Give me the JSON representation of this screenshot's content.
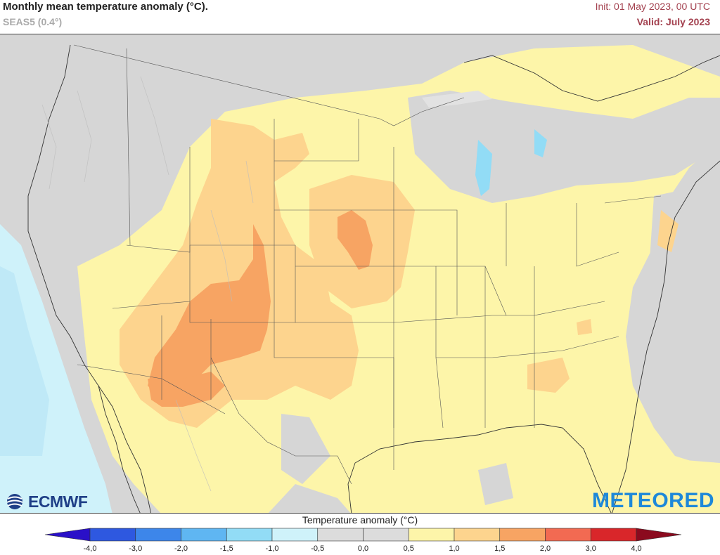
{
  "header": {
    "title": "Monthly mean temperature anomaly (°C).",
    "subtitle": "SEAS5 (0.4°)",
    "init": "Init: 01 May 2023, 00 UTC",
    "valid": "Valid: July 2023"
  },
  "logos": {
    "left": "ECMWF",
    "right": "METEORED"
  },
  "legend": {
    "title": "Temperature anomaly (°C)",
    "tick_labels": [
      "-4,0",
      "-3,0",
      "-2,0",
      "-1,5",
      "-1,0",
      "-0,5",
      "0,0",
      "0,5",
      "1,0",
      "1,5",
      "2,0",
      "3,0",
      "4,0"
    ],
    "under_color": "#2a10c8",
    "over_color": "#8b0a1e",
    "bins": [
      {
        "from": -4.0,
        "to": -3.0,
        "color": "#2e58e0"
      },
      {
        "from": -3.0,
        "to": -2.0,
        "color": "#3d86ea"
      },
      {
        "from": -2.0,
        "to": -1.5,
        "color": "#5fb6f2"
      },
      {
        "from": -1.5,
        "to": -1.0,
        "color": "#92dcf6"
      },
      {
        "from": -1.0,
        "to": -0.5,
        "color": "#cff2fa"
      },
      {
        "from": -0.5,
        "to": 0.0,
        "color": "#dcdcdc"
      },
      {
        "from": 0.0,
        "to": 0.5,
        "color": "#dcdcdc"
      },
      {
        "from": 0.5,
        "to": 1.0,
        "color": "#fdf5a9"
      },
      {
        "from": 1.0,
        "to": 1.5,
        "color": "#fdd48e"
      },
      {
        "from": 1.5,
        "to": 2.0,
        "color": "#f7a463"
      },
      {
        "from": 2.0,
        "to": 3.0,
        "color": "#f26a52"
      },
      {
        "from": 3.0,
        "to": 4.0,
        "color": "#d9262a"
      }
    ]
  },
  "map_colors": {
    "neutral": "#d6d6d6",
    "warm1": "#fdf5a9",
    "warm2": "#fdd48e",
    "warm3": "#f7a463",
    "cool1": "#cff2fa",
    "cool2": "#92dcf6"
  }
}
